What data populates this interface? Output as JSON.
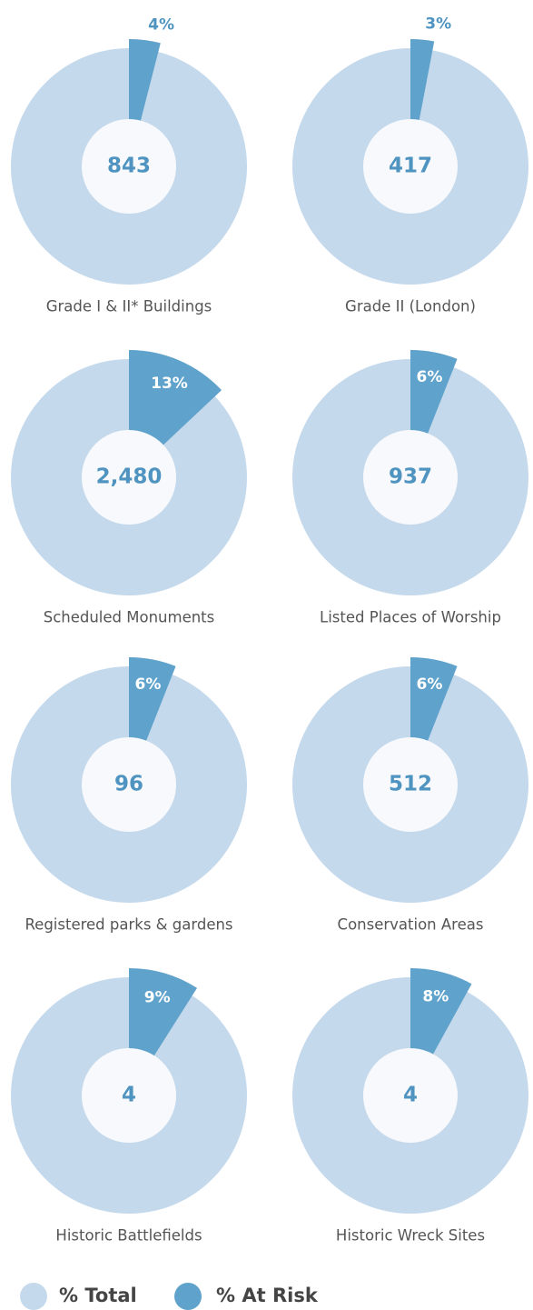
{
  "chart_data": [
    {
      "type": "pie",
      "title": "Grade I & II* Buildings",
      "center": "843",
      "values": [
        4
      ],
      "value_labels": [
        "4%"
      ]
    },
    {
      "type": "pie",
      "title": "Grade II (London)",
      "center": "417",
      "values": [
        3
      ],
      "value_labels": [
        "3%"
      ]
    },
    {
      "type": "pie",
      "title": "Scheduled Monuments",
      "center": "2,480",
      "values": [
        13
      ],
      "value_labels": [
        "13%"
      ]
    },
    {
      "type": "pie",
      "title": "Listed Places of Worship",
      "center": "937",
      "values": [
        6
      ],
      "value_labels": [
        "6%"
      ]
    },
    {
      "type": "pie",
      "title": "Registered parks & gardens",
      "center": "96",
      "values": [
        6
      ],
      "value_labels": [
        "6%"
      ]
    },
    {
      "type": "pie",
      "title": "Conservation Areas",
      "center": "512",
      "values": [
        6
      ],
      "value_labels": [
        "6%"
      ]
    },
    {
      "type": "pie",
      "title": "Historic Battlefields",
      "center": "4",
      "values": [
        9
      ],
      "value_labels": [
        "9%"
      ]
    },
    {
      "type": "pie",
      "title": "Historic Wreck Sites",
      "center": "4",
      "values": [
        8
      ],
      "value_labels": [
        "8%"
      ]
    }
  ],
  "legend": [
    {
      "name": "% Total",
      "color": "#c5d9ec"
    },
    {
      "name": "% At Risk",
      "color": "#5fa2cb"
    }
  ]
}
